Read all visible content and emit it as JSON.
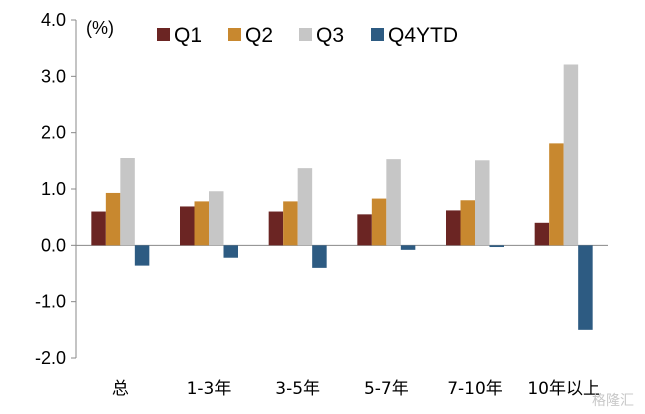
{
  "chart_data": {
    "type": "bar",
    "unit_label": "(%)",
    "categories": [
      "总",
      "1-3年",
      "3-5年",
      "5-7年",
      "7-10年",
      "10年以上"
    ],
    "series": [
      {
        "name": "Q1",
        "color": "#6B2523",
        "values": [
          0.6,
          0.69,
          0.6,
          0.55,
          0.62,
          0.4
        ]
      },
      {
        "name": "Q2",
        "color": "#C8882F",
        "values": [
          0.93,
          0.78,
          0.78,
          0.83,
          0.8,
          1.81
        ]
      },
      {
        "name": "Q3",
        "color": "#C6C6C6",
        "values": [
          1.55,
          0.96,
          1.37,
          1.53,
          1.51,
          3.21
        ]
      },
      {
        "name": "Q4YTD",
        "color": "#2D5B82",
        "values": [
          -0.36,
          -0.22,
          -0.4,
          -0.08,
          -0.03,
          -1.5
        ]
      }
    ],
    "yticks": [
      "4.0",
      "3.0",
      "2.0",
      "1.0",
      "0.0",
      "-1.0",
      "-2.0"
    ],
    "ylim": [
      -2.0,
      4.0
    ],
    "grid": false,
    "legend_position": "top"
  },
  "watermark": "格隆汇"
}
